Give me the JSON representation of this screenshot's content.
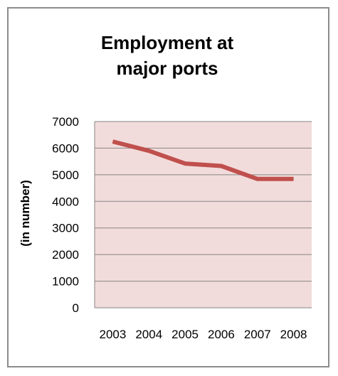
{
  "chart_data": {
    "type": "line",
    "title": "Employment at major ports",
    "xlabel": "",
    "ylabel": "(in number)",
    "x": [
      "2003",
      "2004",
      "2005",
      "2006",
      "2007",
      "2008"
    ],
    "series": [
      {
        "values": [
          6250,
          5900,
          5420,
          5330,
          4840,
          4840
        ]
      }
    ],
    "ylim": [
      0,
      7000
    ],
    "yticks": [
      "0",
      "1000",
      "2000",
      "3000",
      "4000",
      "5000",
      "6000",
      "7000"
    ],
    "grid": true,
    "legend": "none",
    "colors": {
      "plot_background": "#f2dcdb",
      "line": "#c0504d",
      "gridline": "#868686",
      "frame": "#8c8c8c"
    }
  }
}
